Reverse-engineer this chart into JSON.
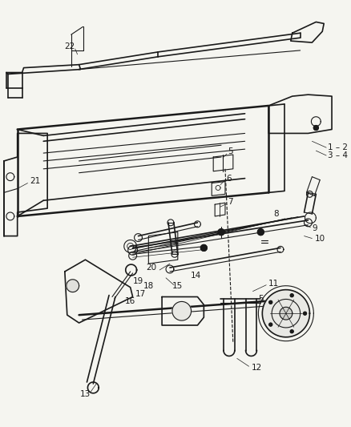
{
  "bg_color": "#f5f5f0",
  "fig_width": 4.38,
  "fig_height": 5.33,
  "dpi": 100,
  "image_data": ""
}
